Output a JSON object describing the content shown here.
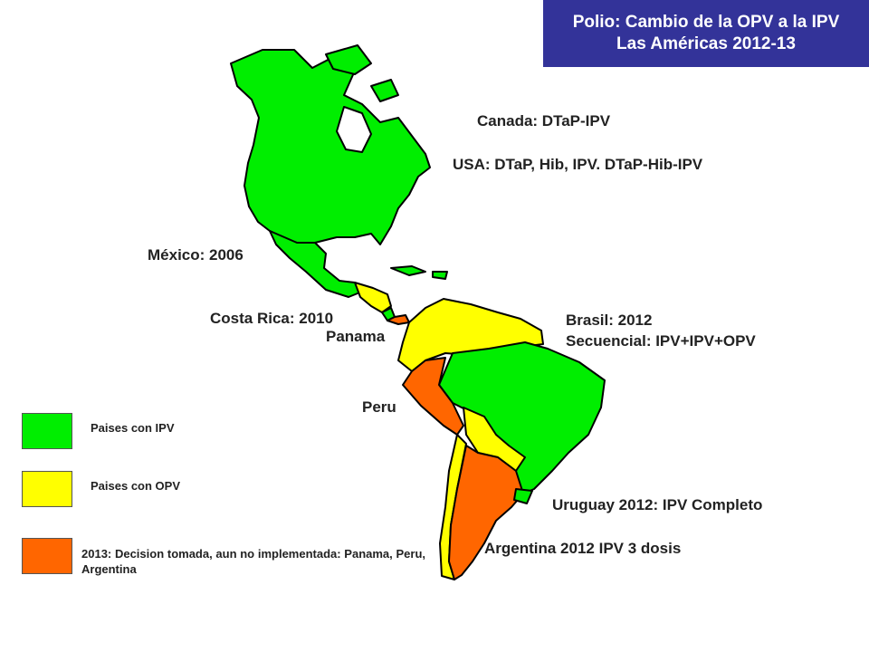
{
  "title": {
    "line1": "Polio: Cambio de la OPV a la IPV",
    "line2": "Las Américas 2012-13"
  },
  "colors": {
    "ipv": "#00ee00",
    "opv": "#ffff00",
    "decision": "#ff6600",
    "title_bg": "#333399"
  },
  "labels": {
    "canada": "Canada: DTaP-IPV",
    "usa": "USA: DTaP, Hib, IPV. DTaP-Hib-IPV",
    "mexico": "México: 2006",
    "costa_rica": "Costa Rica: 2010",
    "panama": "Panama",
    "brasil_1": "Brasil: 2012",
    "brasil_2": "Secuencial: IPV+IPV+OPV",
    "peru": "Peru",
    "uruguay": "Uruguay 2012: IPV Completo",
    "argentina": "Argentina 2012 IPV 3 dosis"
  },
  "legend": {
    "ipv": "Paises con IPV",
    "opv": "Paises con OPV",
    "decision": "2013: Decision tomada, aun no implementada: Panama, Peru, Argentina"
  }
}
